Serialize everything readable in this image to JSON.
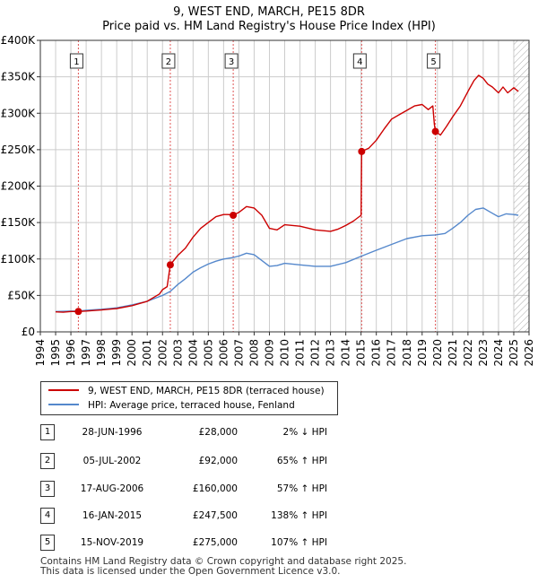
{
  "title": {
    "line1": "9, WEST END, MARCH, PE15 8DR",
    "line2": "Price paid vs. HM Land Registry's House Price Index (HPI)"
  },
  "colors": {
    "property": "#cc0000",
    "hpi": "#5588cc",
    "grid": "#cccccc",
    "future_hatch": "#999999",
    "vline": "#e05555"
  },
  "chart_data": {
    "type": "line",
    "xlim": [
      1994,
      2026
    ],
    "ylim": [
      0,
      400000
    ],
    "x_ticks": [
      "1994",
      "1995",
      "1996",
      "1997",
      "1998",
      "1999",
      "2000",
      "2001",
      "2002",
      "2003",
      "2004",
      "2005",
      "2006",
      "2007",
      "2008",
      "2009",
      "2010",
      "2011",
      "2012",
      "2013",
      "2014",
      "2015",
      "2016",
      "2017",
      "2018",
      "2019",
      "2020",
      "2021",
      "2022",
      "2023",
      "2024",
      "2025",
      "2026"
    ],
    "y_ticks": [
      {
        "value": 0,
        "label": "£0"
      },
      {
        "value": 50000,
        "label": "£50K"
      },
      {
        "value": 100000,
        "label": "£100K"
      },
      {
        "value": 150000,
        "label": "£150K"
      },
      {
        "value": 200000,
        "label": "£200K"
      },
      {
        "value": 250000,
        "label": "£250K"
      },
      {
        "value": 300000,
        "label": "£300K"
      },
      {
        "value": 350000,
        "label": "£350K"
      },
      {
        "value": 400000,
        "label": "£400K"
      }
    ],
    "forecast_from": 2025.0,
    "series": [
      {
        "name": "9, WEST END, MARCH, PE15 8DR (terraced house)",
        "color": "#cc0000",
        "points": [
          [
            1995.0,
            27500
          ],
          [
            1995.5,
            27000
          ],
          [
            1996.0,
            28000
          ],
          [
            1996.49,
            28000
          ],
          [
            1997.0,
            28500
          ],
          [
            1998.0,
            30000
          ],
          [
            1999.0,
            32000
          ],
          [
            2000.0,
            36000
          ],
          [
            2001.0,
            42000
          ],
          [
            2001.8,
            52000
          ],
          [
            2002.0,
            58000
          ],
          [
            2002.3,
            62000
          ],
          [
            2002.51,
            92000
          ],
          [
            2003.0,
            105000
          ],
          [
            2003.5,
            115000
          ],
          [
            2004.0,
            130000
          ],
          [
            2004.5,
            142000
          ],
          [
            2005.0,
            150000
          ],
          [
            2005.5,
            158000
          ],
          [
            2006.0,
            161000
          ],
          [
            2006.3,
            161000
          ],
          [
            2006.63,
            160000
          ],
          [
            2007.0,
            164000
          ],
          [
            2007.5,
            172000
          ],
          [
            2008.0,
            170000
          ],
          [
            2008.5,
            160000
          ],
          [
            2009.0,
            142000
          ],
          [
            2009.5,
            140000
          ],
          [
            2010.0,
            147000
          ],
          [
            2011.0,
            145000
          ],
          [
            2012.0,
            140000
          ],
          [
            2013.0,
            138000
          ],
          [
            2013.5,
            141000
          ],
          [
            2014.0,
            146000
          ],
          [
            2014.5,
            152000
          ],
          [
            2015.0,
            160000
          ],
          [
            2015.04,
            247500
          ],
          [
            2015.5,
            252000
          ],
          [
            2016.0,
            263000
          ],
          [
            2016.5,
            278000
          ],
          [
            2017.0,
            292000
          ],
          [
            2017.5,
            298000
          ],
          [
            2018.0,
            304000
          ],
          [
            2018.5,
            310000
          ],
          [
            2019.0,
            312000
          ],
          [
            2019.4,
            305000
          ],
          [
            2019.7,
            310000
          ],
          [
            2019.8,
            285000
          ],
          [
            2019.87,
            275000
          ],
          [
            2020.2,
            270000
          ],
          [
            2020.6,
            282000
          ],
          [
            2021.0,
            295000
          ],
          [
            2021.5,
            310000
          ],
          [
            2022.0,
            330000
          ],
          [
            2022.4,
            345000
          ],
          [
            2022.7,
            352000
          ],
          [
            2023.0,
            348000
          ],
          [
            2023.3,
            340000
          ],
          [
            2023.6,
            336000
          ],
          [
            2024.0,
            328000
          ],
          [
            2024.3,
            336000
          ],
          [
            2024.6,
            328000
          ],
          [
            2025.0,
            335000
          ],
          [
            2025.3,
            330000
          ]
        ]
      },
      {
        "name": "HPI: Average price, terraced house, Fenland",
        "color": "#5588cc",
        "points": [
          [
            1995.0,
            28000
          ],
          [
            1996.0,
            28500
          ],
          [
            1996.49,
            28500
          ],
          [
            1997.0,
            29500
          ],
          [
            1998.0,
            31000
          ],
          [
            1999.0,
            33000
          ],
          [
            2000.0,
            37000
          ],
          [
            2001.0,
            42000
          ],
          [
            2002.0,
            50000
          ],
          [
            2002.51,
            55500
          ],
          [
            2003.0,
            65000
          ],
          [
            2003.5,
            73000
          ],
          [
            2004.0,
            82000
          ],
          [
            2004.5,
            88000
          ],
          [
            2005.0,
            93000
          ],
          [
            2005.5,
            97000
          ],
          [
            2006.0,
            100000
          ],
          [
            2006.63,
            102000
          ],
          [
            2007.0,
            104000
          ],
          [
            2007.5,
            108000
          ],
          [
            2008.0,
            106000
          ],
          [
            2008.5,
            98000
          ],
          [
            2009.0,
            90000
          ],
          [
            2009.5,
            91000
          ],
          [
            2010.0,
            94000
          ],
          [
            2011.0,
            92000
          ],
          [
            2012.0,
            90000
          ],
          [
            2013.0,
            90000
          ],
          [
            2014.0,
            95000
          ],
          [
            2015.04,
            104000
          ],
          [
            2016.0,
            112000
          ],
          [
            2017.0,
            120000
          ],
          [
            2018.0,
            128000
          ],
          [
            2019.0,
            132000
          ],
          [
            2019.87,
            133000
          ],
          [
            2020.5,
            135000
          ],
          [
            2021.0,
            142000
          ],
          [
            2021.5,
            150000
          ],
          [
            2022.0,
            160000
          ],
          [
            2022.5,
            168000
          ],
          [
            2023.0,
            170000
          ],
          [
            2023.5,
            164000
          ],
          [
            2024.0,
            158000
          ],
          [
            2024.5,
            162000
          ],
          [
            2025.0,
            161000
          ],
          [
            2025.3,
            160000
          ]
        ]
      }
    ],
    "sales": [
      {
        "label": "1",
        "x": 1996.49,
        "y": 28000
      },
      {
        "label": "2",
        "x": 2002.51,
        "y": 92000
      },
      {
        "label": "3",
        "x": 2006.63,
        "y": 160000
      },
      {
        "label": "4",
        "x": 2015.04,
        "y": 247500
      },
      {
        "label": "5",
        "x": 2019.87,
        "y": 275000
      }
    ]
  },
  "legend": {
    "property_label": "9, WEST END, MARCH, PE15 8DR (terraced house)",
    "hpi_label": "HPI: Average price, terraced house, Fenland"
  },
  "sales_table": [
    {
      "num": "1",
      "date": "28-JUN-1996",
      "price": "£28,000",
      "hpi": "2% ↓ HPI"
    },
    {
      "num": "2",
      "date": "05-JUL-2002",
      "price": "£92,000",
      "hpi": "65% ↑ HPI"
    },
    {
      "num": "3",
      "date": "17-AUG-2006",
      "price": "£160,000",
      "hpi": "57% ↑ HPI"
    },
    {
      "num": "4",
      "date": "16-JAN-2015",
      "price": "£247,500",
      "hpi": "138% ↑ HPI"
    },
    {
      "num": "5",
      "date": "15-NOV-2019",
      "price": "£275,000",
      "hpi": "107% ↑ HPI"
    }
  ],
  "footer": {
    "line1": "Contains HM Land Registry data © Crown copyright and database right 2025.",
    "line2": "This data is licensed under the Open Government Licence v3.0."
  }
}
